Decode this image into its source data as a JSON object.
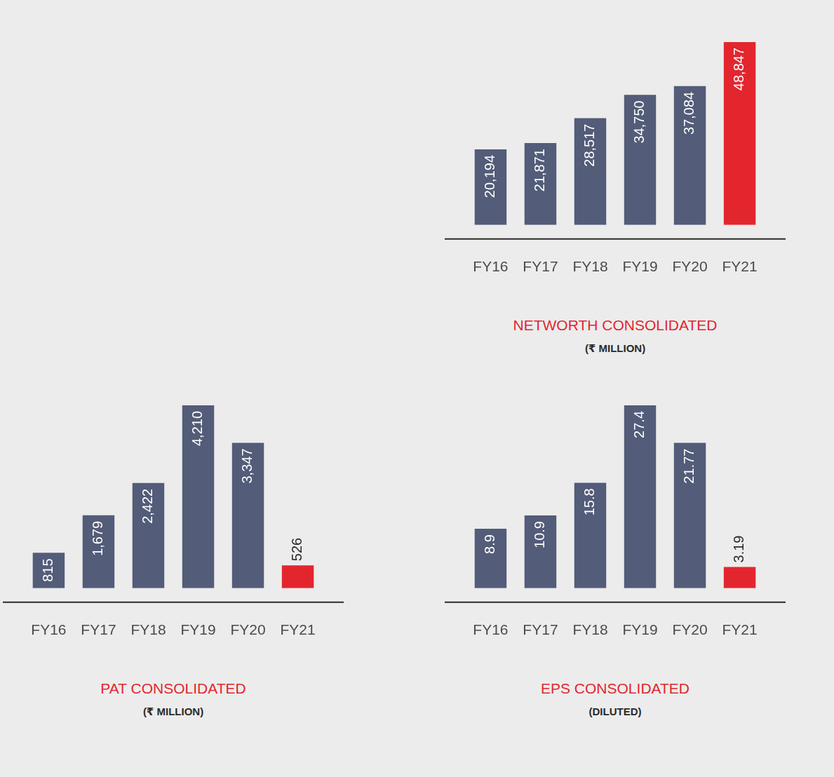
{
  "chart_data": [
    {
      "type": "bar",
      "title": "NETWORTH CONSOLIDATED",
      "subtitle": "(₹ MILLION)",
      "categories": [
        "FY16",
        "FY17",
        "FY18",
        "FY19",
        "FY20",
        "FY21"
      ],
      "values": [
        20194,
        21871,
        28517,
        34750,
        37084,
        48847
      ],
      "value_labels": [
        "20,194",
        "21,871",
        "28,517",
        "34,750",
        "37,084",
        "48,847"
      ],
      "colors": [
        "#535c78",
        "#535c78",
        "#535c78",
        "#535c78",
        "#535c78",
        "#e3262e"
      ],
      "ylim": [
        0,
        48847
      ],
      "grid": false,
      "data_labels": true,
      "tick_labels": "x"
    },
    {
      "type": "bar",
      "title": "PAT CONSOLIDATED",
      "subtitle": "(₹ MILLION)",
      "categories": [
        "FY16",
        "FY17",
        "FY18",
        "FY19",
        "FY20",
        "FY21"
      ],
      "values": [
        815,
        1679,
        2422,
        4210,
        3347,
        526
      ],
      "value_labels": [
        "815",
        "1,679",
        "2,422",
        "4,210",
        "3,347",
        "526"
      ],
      "colors": [
        "#535c78",
        "#535c78",
        "#535c78",
        "#535c78",
        "#535c78",
        "#e3262e"
      ],
      "ylim": [
        0,
        4210
      ],
      "grid": false,
      "data_labels": true,
      "tick_labels": "x"
    },
    {
      "type": "bar",
      "title": "EPS CONSOLIDATED",
      "subtitle": "(DILUTED)",
      "categories": [
        "FY16",
        "FY17",
        "FY18",
        "FY19",
        "FY20",
        "FY21"
      ],
      "values": [
        8.9,
        10.9,
        15.8,
        27.4,
        21.77,
        3.19
      ],
      "colors": [
        "#535c78",
        "#535c78",
        "#535c78",
        "#535c78",
        "#535c78",
        "#e3262e"
      ],
      "ylim": [
        0,
        27.4
      ],
      "grid": false,
      "data_labels": true,
      "tick_labels": "x"
    }
  ]
}
